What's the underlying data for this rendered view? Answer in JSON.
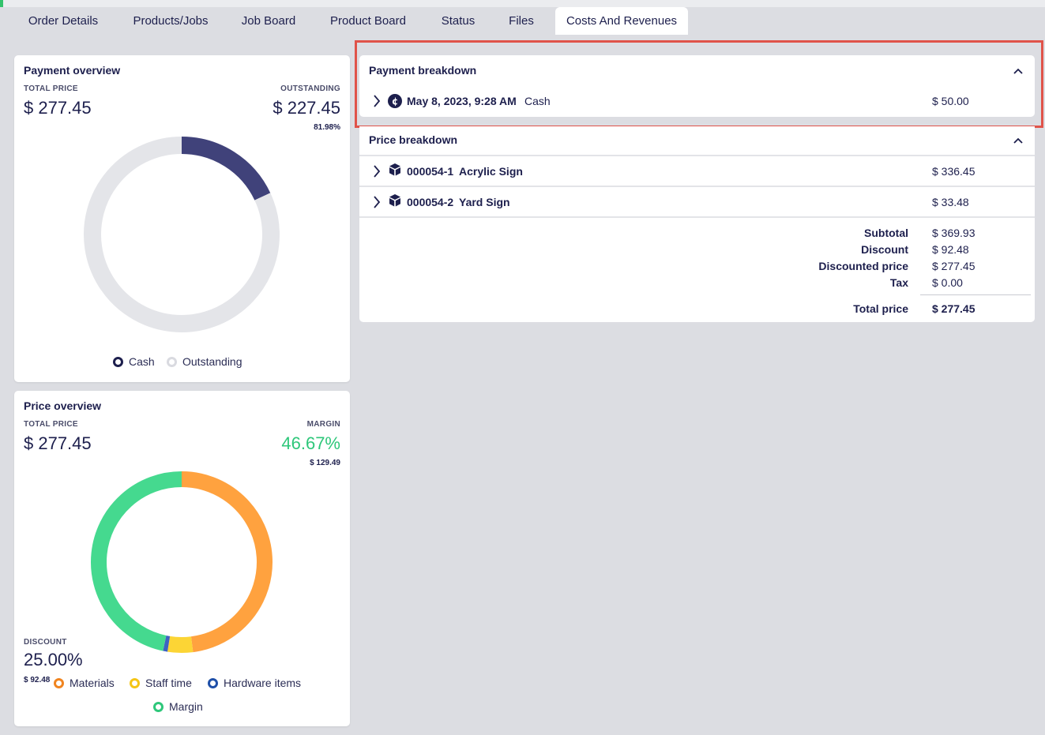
{
  "tabs": [
    {
      "label": "Order Details"
    },
    {
      "label": "Products/Jobs"
    },
    {
      "label": "Job Board"
    },
    {
      "label": "Product Board"
    },
    {
      "label": "Status"
    },
    {
      "label": "Files"
    },
    {
      "label": "Costs And Revenues",
      "active": true
    }
  ],
  "payment_overview": {
    "title": "Payment overview",
    "total_label": "TOTAL PRICE",
    "total_value": "$ 277.45",
    "outstanding_label": "OUTSTANDING",
    "outstanding_value": "$ 227.45",
    "outstanding_percent": "81.98%",
    "chart": {
      "cash_fraction": 0.1802,
      "outstanding_fraction": 0.8198
    },
    "legend": [
      {
        "label": "Cash",
        "color": "#1d1f4d"
      },
      {
        "label": "Outstanding",
        "color": "#d9dae0"
      }
    ],
    "colors": {
      "cash": "#40427a",
      "outstanding": "#e4e5e9"
    }
  },
  "price_overview": {
    "title": "Price overview",
    "total_label": "TOTAL PRICE",
    "total_value": "$ 277.45",
    "margin_label": "MARGIN",
    "margin_value": "46.67%",
    "margin_amount": "$ 129.49",
    "discount_label": "DISCOUNT",
    "discount_value": "25.00%",
    "discount_amount": "$ 92.48",
    "chart": {
      "materials_fraction": 0.48,
      "staff_time_fraction": 0.045,
      "hardware_fraction": 0.008,
      "margin_fraction": 0.467
    },
    "legend": [
      {
        "label": "Materials",
        "color": "#f0841f"
      },
      {
        "label": "Staff time",
        "color": "#f5c515"
      },
      {
        "label": "Hardware items",
        "color": "#1e4fa8"
      },
      {
        "label": "Margin",
        "color": "#2ec77a"
      }
    ],
    "colors": {
      "materials": "#ffa23f",
      "staff_time": "#fcd535",
      "hardware": "#3e62c2",
      "margin": "#45d98f",
      "margin_text": "#2ec77a"
    }
  },
  "payment_breakdown": {
    "title": "Payment breakdown",
    "rows": [
      {
        "date": "May 8, 2023, 9:28 AM",
        "method": "Cash",
        "amount": "$ 50.00"
      }
    ]
  },
  "price_breakdown": {
    "title": "Price breakdown",
    "items": [
      {
        "code": "000054-1",
        "name": "Acrylic Sign",
        "amount": "$ 336.45"
      },
      {
        "code": "000054-2",
        "name": "Yard Sign",
        "amount": "$ 33.48"
      }
    ],
    "totals": {
      "subtotal_label": "Subtotal",
      "subtotal": "$ 369.93",
      "discount_label": "Discount",
      "discount": "$ 92.48",
      "discounted_label": "Discounted price",
      "discounted": "$ 277.45",
      "tax_label": "Tax",
      "tax": "$ 0.00",
      "total_label": "Total price",
      "total": "$ 277.45"
    }
  }
}
